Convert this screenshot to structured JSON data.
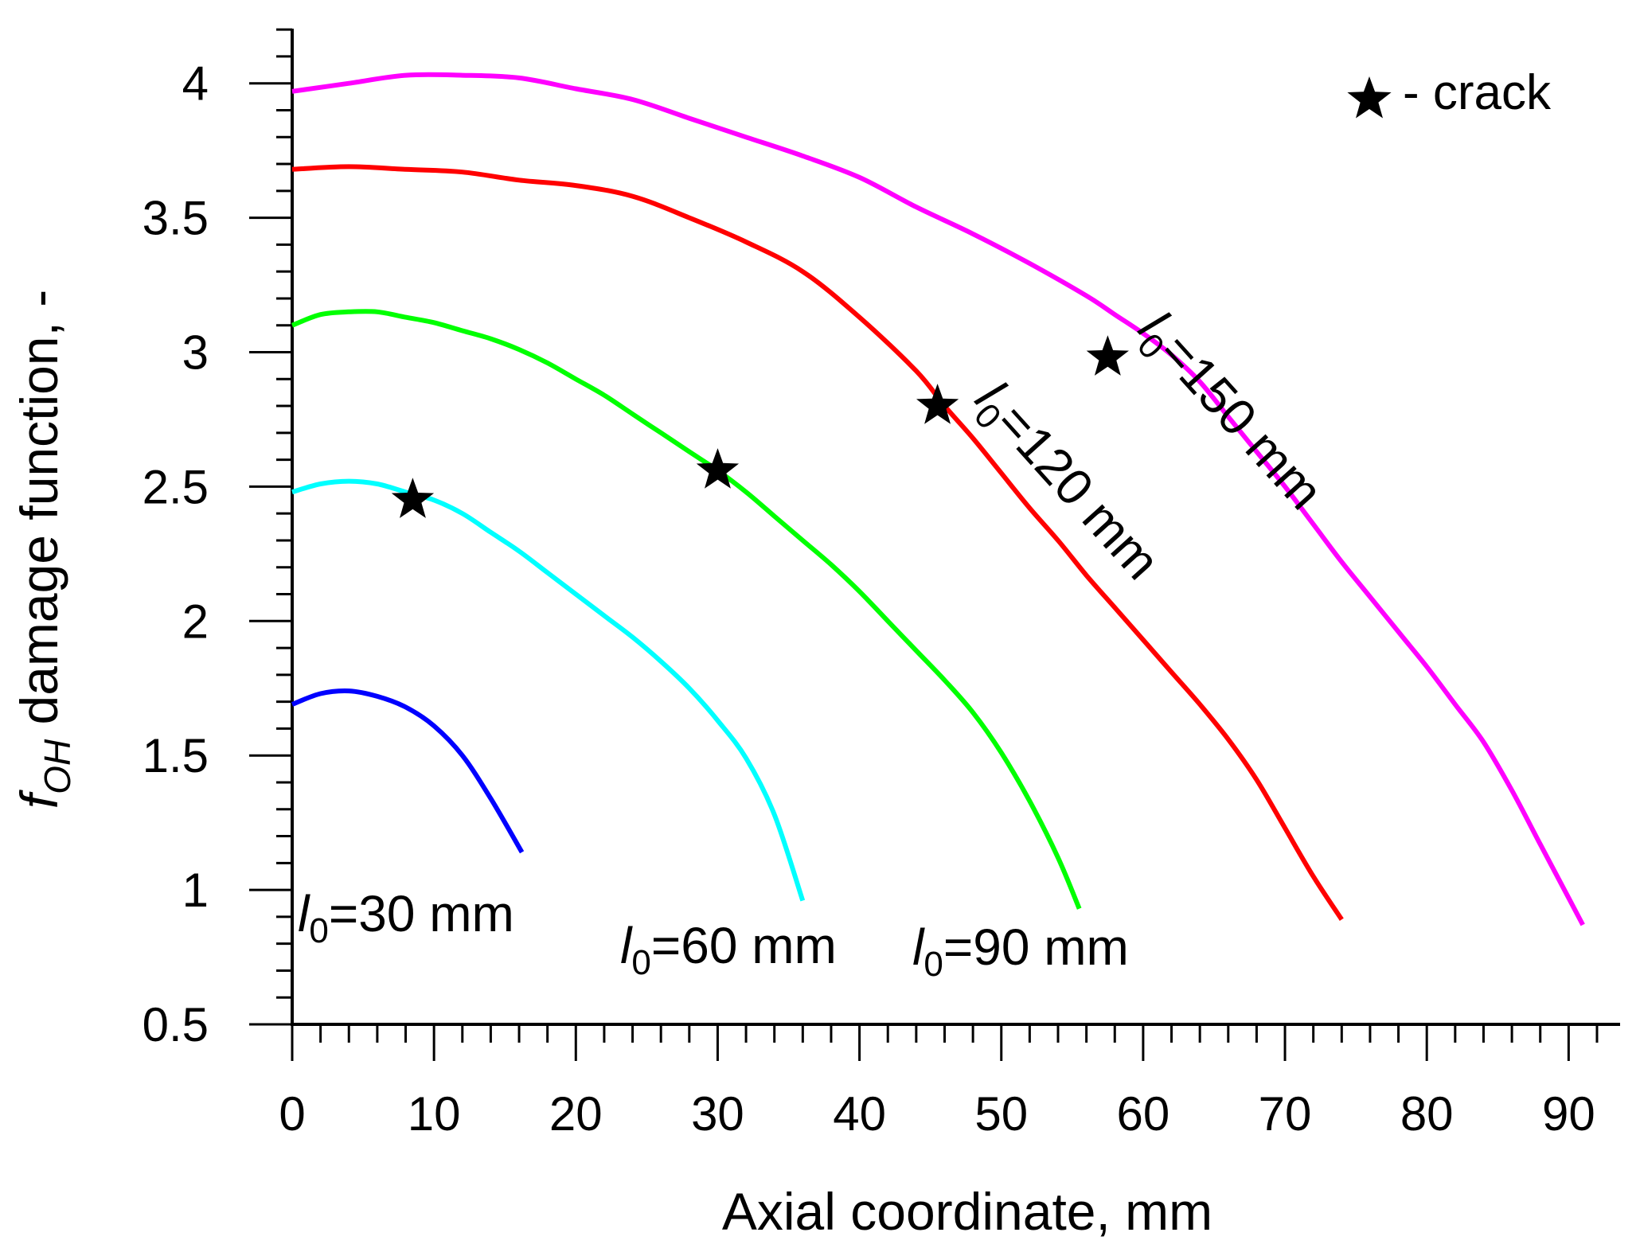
{
  "chart_data": {
    "type": "line",
    "title": "",
    "xlabel": "Axial coordinate, mm",
    "ylabel": {
      "symbol": "f",
      "subscript": "OH",
      "text": " damage function, -"
    },
    "xlim": [
      0,
      92
    ],
    "ylim": [
      0.5,
      4.2
    ],
    "x_ticks": [
      0,
      10,
      20,
      30,
      40,
      50,
      60,
      70,
      80,
      90
    ],
    "x_tick_labels": [
      "0",
      "10",
      "20",
      "30",
      "40",
      "50",
      "60",
      "70",
      "80",
      "90"
    ],
    "y_ticks": [
      0.5,
      1,
      1.5,
      2,
      2.5,
      3,
      3.5,
      4
    ],
    "y_tick_labels": [
      "0.5",
      "1",
      "1.5",
      "2",
      "2.5",
      "3",
      "3.5",
      "4"
    ],
    "x_minor_step": 2,
    "y_minor_step": 0.1,
    "grid": false,
    "legend": {
      "symbol": "★",
      "text": "- crack",
      "position": "top-right"
    },
    "series": [
      {
        "name": "l0=30 mm",
        "label": {
          "symbol": "l",
          "subscript": "0",
          "text": "=30 mm"
        },
        "color": "#0000ff",
        "x": [
          0,
          2,
          4,
          6,
          8,
          10,
          12,
          14,
          16.2
        ],
        "values": [
          1.69,
          1.73,
          1.74,
          1.72,
          1.68,
          1.61,
          1.5,
          1.34,
          1.14
        ],
        "crack": null
      },
      {
        "name": "l0=60 mm",
        "label": {
          "symbol": "l",
          "subscript": "0",
          "text": "=60 mm"
        },
        "color": "#00ffff",
        "x": [
          0,
          2,
          4,
          6,
          8,
          10,
          12,
          14,
          16,
          18,
          20,
          22,
          24,
          26,
          28,
          30,
          32,
          34,
          36
        ],
        "values": [
          2.48,
          2.51,
          2.52,
          2.51,
          2.48,
          2.45,
          2.4,
          2.33,
          2.26,
          2.18,
          2.1,
          2.02,
          1.94,
          1.85,
          1.75,
          1.63,
          1.49,
          1.28,
          0.96
        ],
        "crack": [
          8.5,
          2.45
        ]
      },
      {
        "name": "l0=90 mm",
        "label": {
          "symbol": "l",
          "subscript": "0",
          "text": "=90 mm"
        },
        "color": "#00ff00",
        "x": [
          0,
          2,
          4,
          6,
          8,
          10,
          12,
          14,
          16,
          18,
          20,
          22,
          24,
          26,
          28,
          30,
          32,
          34,
          36,
          38,
          40,
          42,
          44,
          46,
          48,
          50,
          52,
          54,
          55.5
        ],
        "values": [
          3.1,
          3.14,
          3.15,
          3.15,
          3.13,
          3.11,
          3.08,
          3.05,
          3.01,
          2.96,
          2.9,
          2.84,
          2.77,
          2.7,
          2.63,
          2.56,
          2.48,
          2.39,
          2.3,
          2.21,
          2.11,
          2.0,
          1.89,
          1.78,
          1.66,
          1.51,
          1.33,
          1.12,
          0.93
        ],
        "crack": [
          30,
          2.56
        ]
      },
      {
        "name": "l0=120 mm",
        "label": {
          "symbol": "l",
          "subscript": "0",
          "text": "=120 mm"
        },
        "color": "#ff0000",
        "x": [
          0,
          4,
          8,
          12,
          16,
          20,
          24,
          28,
          32,
          36,
          40,
          44,
          46,
          48,
          50,
          52,
          54,
          56,
          58,
          60,
          62,
          64,
          66,
          68,
          70,
          72,
          74
        ],
        "values": [
          3.68,
          3.69,
          3.68,
          3.67,
          3.64,
          3.62,
          3.58,
          3.5,
          3.41,
          3.3,
          3.13,
          2.93,
          2.8,
          2.68,
          2.55,
          2.42,
          2.3,
          2.17,
          2.05,
          1.93,
          1.81,
          1.69,
          1.56,
          1.41,
          1.23,
          1.05,
          0.89
        ],
        "crack": [
          45.5,
          2.8
        ]
      },
      {
        "name": "l0=150 mm",
        "label": {
          "symbol": "l",
          "subscript": "0",
          "text": "=150 mm"
        },
        "color": "#ff00ff",
        "x": [
          0,
          4,
          8,
          12,
          16,
          20,
          24,
          28,
          32,
          36,
          40,
          44,
          48,
          52,
          56,
          58,
          60,
          62,
          64,
          66,
          68,
          70,
          72,
          74,
          76,
          78,
          80,
          82,
          84,
          86,
          88,
          90,
          91
        ],
        "values": [
          3.97,
          4.0,
          4.03,
          4.03,
          4.02,
          3.98,
          3.94,
          3.87,
          3.8,
          3.73,
          3.65,
          3.54,
          3.44,
          3.33,
          3.21,
          3.14,
          3.07,
          2.99,
          2.89,
          2.76,
          2.63,
          2.5,
          2.36,
          2.22,
          2.09,
          1.96,
          1.83,
          1.69,
          1.55,
          1.37,
          1.17,
          0.97,
          0.87
        ],
        "crack": [
          57.5,
          2.98
        ]
      }
    ]
  }
}
